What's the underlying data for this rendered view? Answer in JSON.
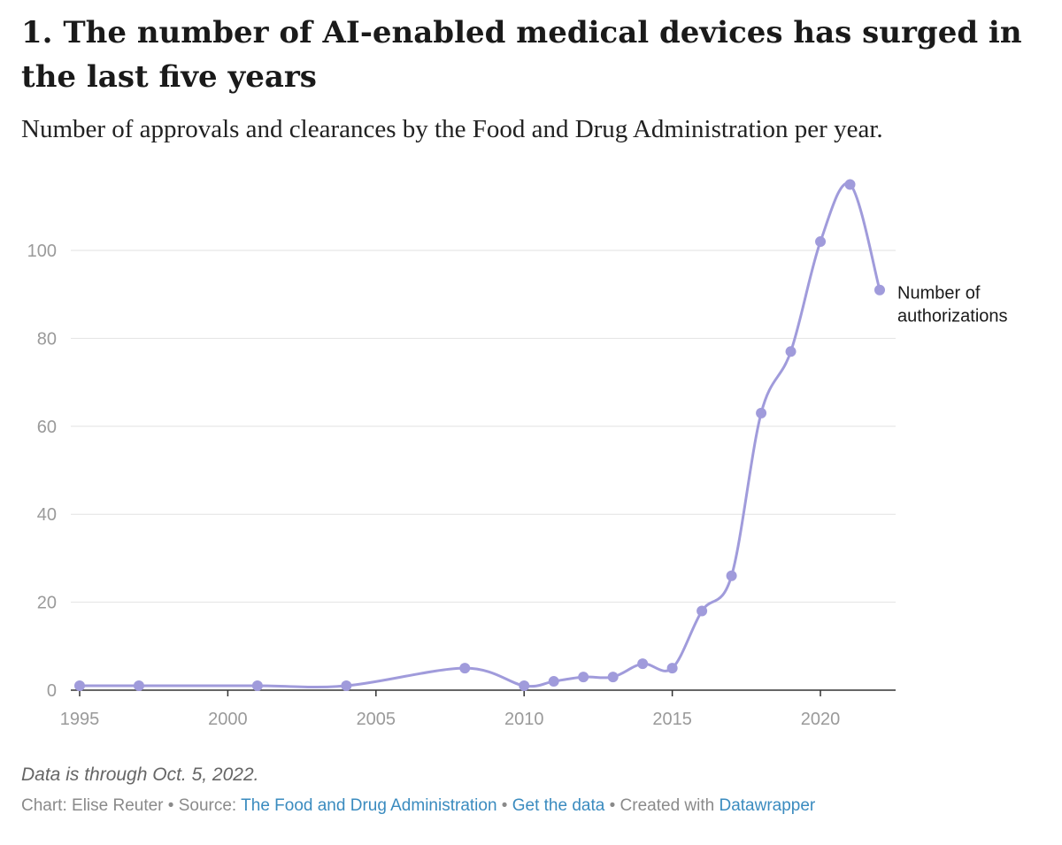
{
  "header": {
    "title": "1. The number of AI-enabled medical devices has surged in the last five years",
    "subtitle": "Number of approvals and clearances by the Food and Drug Administration per year."
  },
  "chart_data": {
    "type": "line",
    "x": [
      1995,
      1997,
      2001,
      2004,
      2008,
      2010,
      2011,
      2012,
      2013,
      2014,
      2015,
      2016,
      2017,
      2018,
      2019,
      2020,
      2021,
      2022
    ],
    "series": [
      {
        "name": "Number of authorizations",
        "values": [
          1,
          1,
          1,
          1,
          5,
          1,
          2,
          3,
          3,
          6,
          5,
          18,
          26,
          63,
          77,
          102,
          115,
          91
        ]
      }
    ],
    "xticks": [
      "1995",
      "2000",
      "2005",
      "2010",
      "2015",
      "2020"
    ],
    "yticks": [
      "0",
      "20",
      "40",
      "60",
      "80",
      "100"
    ],
    "xlim": [
      1995,
      2022
    ],
    "ylim": [
      0,
      115
    ],
    "grid": true,
    "line_color": "#a09bdb",
    "series_label_lines": [
      "Number of",
      "authorizations"
    ]
  },
  "footer": {
    "note": "Data is through Oct. 5, 2022.",
    "credit_prefix": "Chart: Elise Reuter • Source: ",
    "source_link": "The Food and Drug Administration",
    "sep1": " • ",
    "data_link": "Get the data",
    "sep2": " • Created with ",
    "tool_link": "Datawrapper"
  }
}
